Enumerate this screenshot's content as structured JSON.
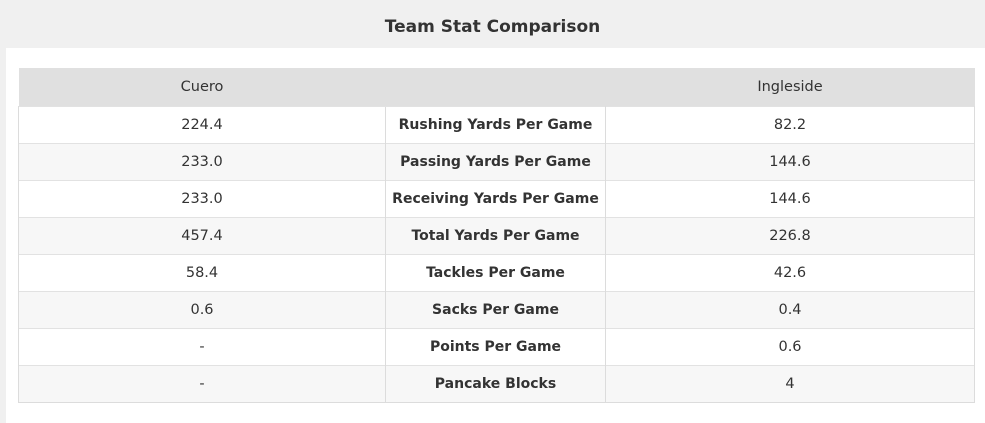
{
  "header": {
    "title": "Team Stat Comparison"
  },
  "table": {
    "columns": {
      "home": "Cuero",
      "stat": "",
      "away": "Ingleside"
    },
    "rows": [
      {
        "home": "224.4",
        "stat": "Rushing Yards Per Game",
        "away": "82.2"
      },
      {
        "home": "233.0",
        "stat": "Passing Yards Per Game",
        "away": "144.6"
      },
      {
        "home": "233.0",
        "stat": "Receiving Yards Per Game",
        "away": "144.6"
      },
      {
        "home": "457.4",
        "stat": "Total Yards Per Game",
        "away": "226.8"
      },
      {
        "home": "58.4",
        "stat": "Tackles Per Game",
        "away": "42.6"
      },
      {
        "home": "0.6",
        "stat": "Sacks Per Game",
        "away": "0.4"
      },
      {
        "home": "-",
        "stat": "Points Per Game",
        "away": "0.6"
      },
      {
        "home": "-",
        "stat": "Pancake Blocks",
        "away": "4"
      }
    ]
  }
}
